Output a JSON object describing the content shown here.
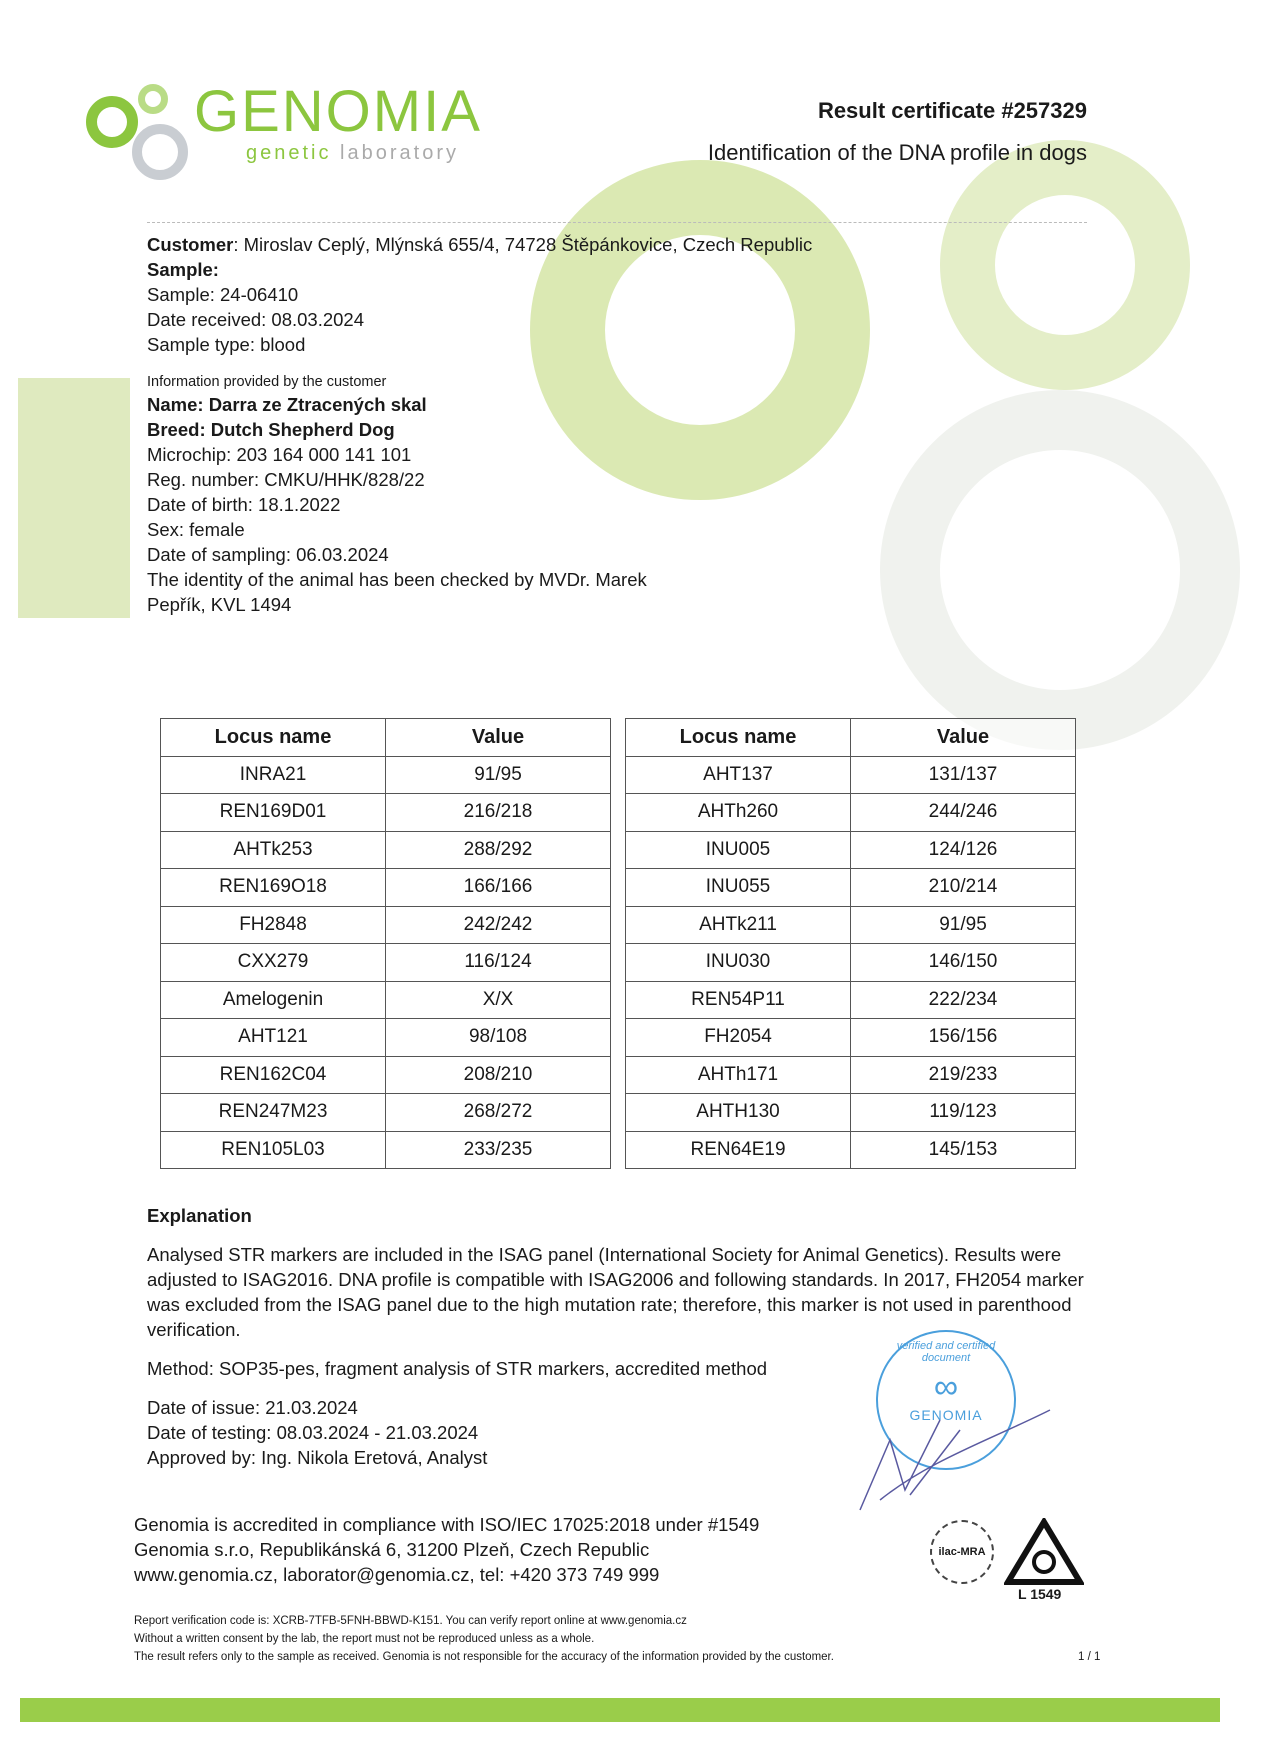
{
  "logo": {
    "name": "GENOMIA",
    "tagline_a": "genetic",
    "tagline_b": " laboratory",
    "color": "#8cc63f"
  },
  "header": {
    "title": "Result certificate #257329",
    "subtitle": "Identification of the DNA profile in dogs"
  },
  "customer": {
    "label": "Customer",
    "value": ": Miroslav Ceplý, Mlýnská 655/4, 74728 Štěpánkovice, Czech Republic"
  },
  "sample": {
    "heading": "Sample:",
    "lines": [
      "Sample: 24-06410",
      "Date received: 08.03.2024",
      "Sample type: blood"
    ]
  },
  "animal": {
    "intro": "Information provided by the customer",
    "name": "Name: Darra ze Ztracených skal",
    "breed": "Breed: Dutch Shepherd Dog",
    "lines": [
      "Microchip: 203 164 000 141 101",
      "Reg. number: CMKU/HHK/828/22",
      "Date of birth: 18.1.2022",
      "Sex: female",
      "Date of sampling: 06.03.2024",
      "The identity of the animal has been checked by MVDr. Marek",
      "Pepřík, KVL 1494"
    ]
  },
  "table": {
    "headers": [
      "Locus name",
      "Value",
      "Locus name",
      "Value"
    ],
    "rows": [
      [
        "INRA21",
        "91/95",
        "AHT137",
        "131/137"
      ],
      [
        "REN169D01",
        "216/218",
        "AHTh260",
        "244/246"
      ],
      [
        "AHTk253",
        "288/292",
        "INU005",
        "124/126"
      ],
      [
        "REN169O18",
        "166/166",
        "INU055",
        "210/214"
      ],
      [
        "FH2848",
        "242/242",
        "AHTk211",
        "91/95"
      ],
      [
        "CXX279",
        "116/124",
        "INU030",
        "146/150"
      ],
      [
        "Amelogenin",
        "X/X",
        "REN54P11",
        "222/234"
      ],
      [
        "AHT121",
        "98/108",
        "FH2054",
        "156/156"
      ],
      [
        "REN162C04",
        "208/210",
        "AHTh171",
        "219/233"
      ],
      [
        "REN247M23",
        "268/272",
        "AHTH130",
        "119/123"
      ],
      [
        "REN105L03",
        "233/235",
        "REN64E19",
        "145/153"
      ]
    ]
  },
  "explanation": {
    "heading": "Explanation",
    "text": "Analysed STR markers are included in the ISAG panel (International Society for Animal Genetics). Results were adjusted to ISAG2016. DNA profile is compatible with ISAG2006 and following standards. In 2017, FH2054 marker was excluded from the ISAG panel due to the high mutation rate; therefore, this marker is not used in parenthood verification.",
    "method": "Method: SOP35-pes, fragment analysis of STR markers, accredited method",
    "issue": "Date of issue: 21.03.2024",
    "testing": "Date of testing: 08.03.2024 - 21.03.2024",
    "approved": "Approved by: Ing. Nikola Eretová, Analyst"
  },
  "stamp": {
    "text": "verified and certified document",
    "brand": "GENOMIA"
  },
  "accreditation": {
    "lines": [
      "Genomia is accredited in compliance with ISO/IEC 17025:2018 under #1549",
      "Genomia s.r.o, Republikánská 6, 31200 Plzeň, Czech Republic",
      "www.genomia.cz, laborator@genomia.cz, tel: +420 373 749 999"
    ],
    "ilac": "ilac-MRA",
    "lab_no": "L 1549"
  },
  "footer": {
    "lines": [
      "Report verification code is: XCRB-7TFB-5FNH-BBWD-K151. You can verify report online at www.genomia.cz",
      "Without a written consent by the lab, the report must not be reproduced unless as a whole.",
      "The result refers only to the sample as received. Genomia is not responsible for the accuracy of the information provided by the customer."
    ],
    "page": "1 / 1"
  }
}
